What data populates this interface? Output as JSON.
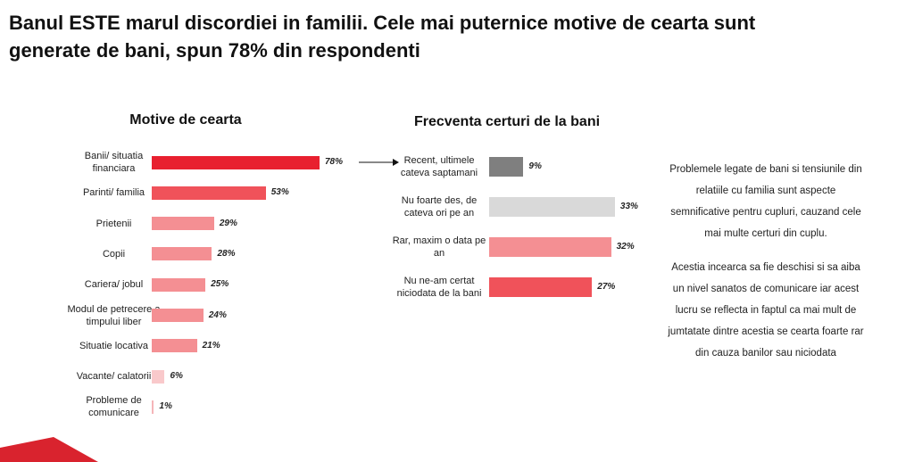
{
  "title": "Banul ESTE marul discordiei in familii. Cele mai puternice motive de cearta sunt generate de bani, spun 78% din respondenti",
  "chart_data": [
    {
      "type": "bar",
      "title": "Motive de cearta",
      "categories": [
        "Banii/ situatia financiara",
        "Parinti/ familia",
        "Prietenii",
        "Copii",
        "Cariera/ jobul",
        "Modul de petrecere a timpului liber",
        "Situatie locativa",
        "Vacante/ calatorii",
        "Probleme de comunicare"
      ],
      "values": [
        78,
        53,
        29,
        28,
        25,
        24,
        21,
        6,
        1
      ],
      "value_labels": [
        "78%",
        "53%",
        "29%",
        "28%",
        "25%",
        "24%",
        "21%",
        "6%",
        "1%"
      ],
      "colors": [
        "#e8202f",
        "#f0525a",
        "#f48f93",
        "#f48f93",
        "#f48f93",
        "#f48f93",
        "#f48f93",
        "#f9c9cb",
        "#f5b5b8"
      ]
    },
    {
      "type": "bar",
      "title": "Frecventa certuri de la bani",
      "categories": [
        "Recent, ultimele cateva saptamani",
        "Nu foarte des, de cateva ori pe an",
        "Rar, maxim o data pe an",
        "Nu ne-am certat niciodata de la bani"
      ],
      "values": [
        9,
        33,
        32,
        27
      ],
      "value_labels": [
        "9%",
        "33%",
        "32%",
        "27%"
      ],
      "colors": [
        "#7f7f7f",
        "#d9d9d9",
        "#f48f93",
        "#f0525a"
      ]
    }
  ],
  "side_text": [
    "Problemele legate de bani si tensiunile din relatiile cu familia sunt aspecte semnificative pentru cupluri, cauzand cele mai multe certuri din cuplu.",
    "Acestia incearca sa fie deschisi si sa aiba un nivel sanatos de comunicare iar acest lucru se reflecta in faptul ca mai mult de jumtatate dintre acestia se cearta foarte rar din cauza banilor sau niciodata"
  ]
}
